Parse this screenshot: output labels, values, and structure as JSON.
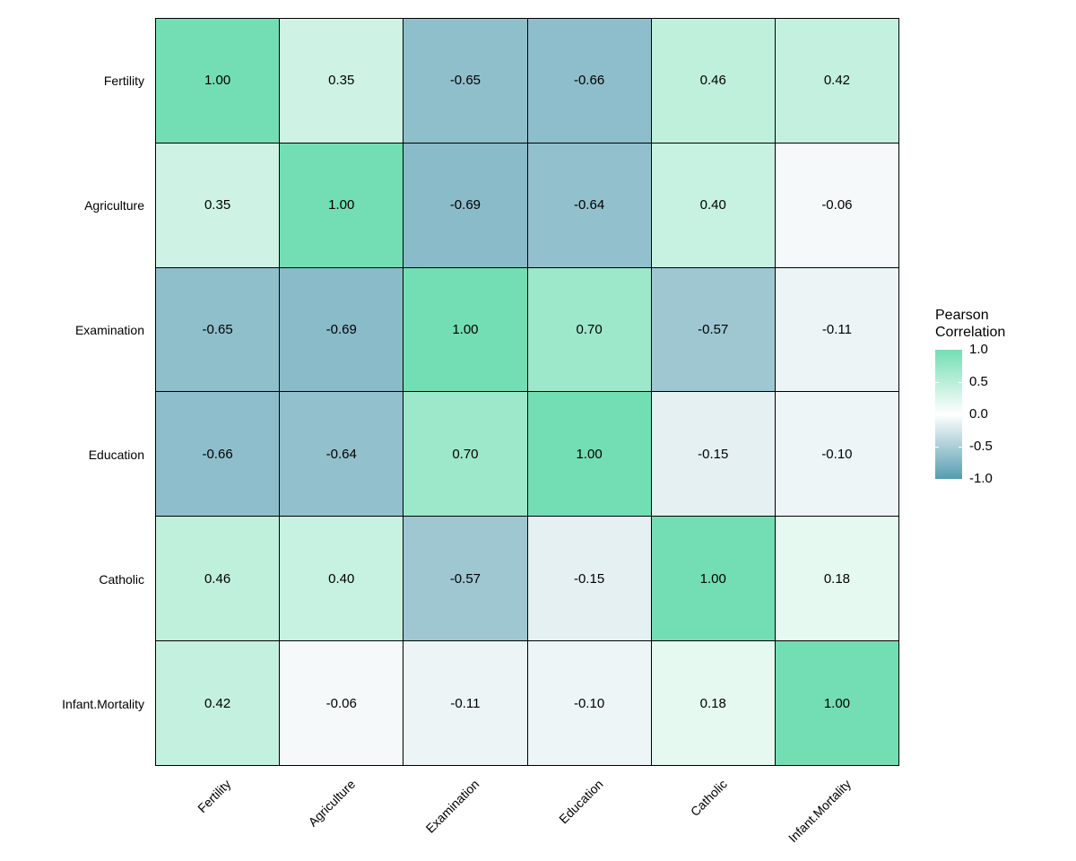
{
  "chart_data": {
    "type": "heatmap",
    "title": "",
    "categories": [
      "Fertility",
      "Agriculture",
      "Examination",
      "Education",
      "Catholic",
      "Infant.Mortality"
    ],
    "matrix": [
      [
        1.0,
        0.35,
        -0.65,
        -0.66,
        0.46,
        0.42
      ],
      [
        0.35,
        1.0,
        -0.69,
        -0.64,
        0.4,
        -0.06
      ],
      [
        -0.65,
        -0.69,
        1.0,
        0.7,
        -0.57,
        -0.11
      ],
      [
        -0.66,
        -0.64,
        0.7,
        1.0,
        -0.15,
        -0.1
      ],
      [
        0.46,
        0.4,
        -0.57,
        -0.15,
        1.0,
        0.18
      ],
      [
        0.42,
        -0.06,
        -0.11,
        -0.1,
        0.18,
        1.0
      ]
    ],
    "value_decimals": 2,
    "value_range": [
      -1,
      1
    ],
    "legend": {
      "position": "right",
      "title_lines": [
        "Pearson",
        "Correlation"
      ],
      "ticks": [
        1.0,
        0.5,
        0.0,
        -0.5,
        -1.0
      ],
      "tick_labels": [
        "1.0",
        "0.5",
        "0.0",
        "-0.5",
        "-1.0"
      ]
    },
    "colors": {
      "high": "#73DEB3",
      "mid": "#FFFFFF",
      "low": "#549DB0",
      "cell_border": "#000000",
      "text": "#000000",
      "background": "#FFFFFF"
    },
    "x_axis_label_angle_deg": 45,
    "grid_visible": false
  }
}
